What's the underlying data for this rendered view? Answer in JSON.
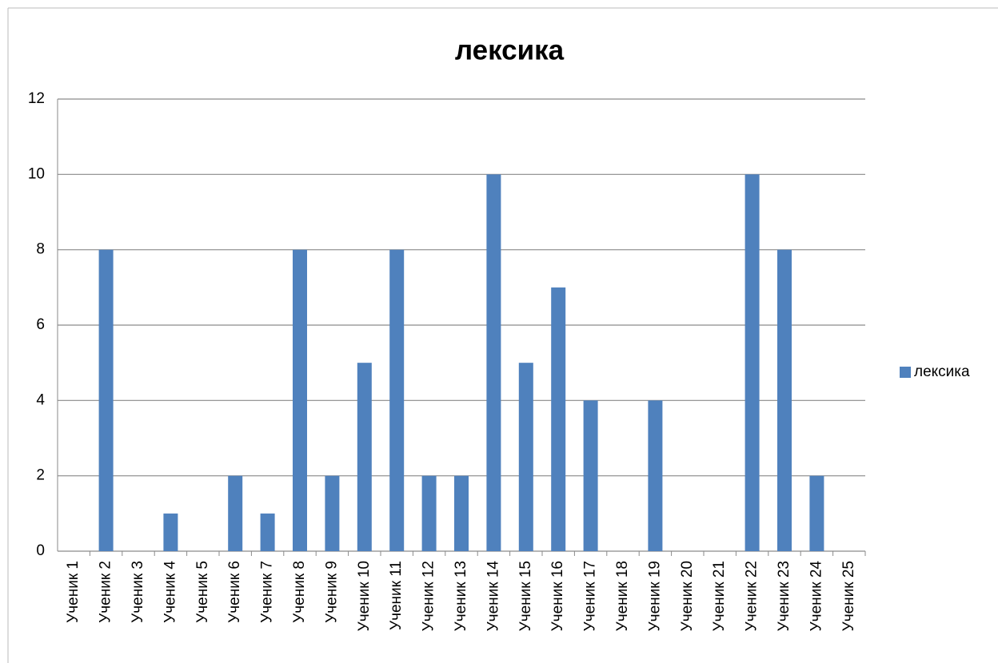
{
  "chart_data": {
    "type": "bar",
    "title": "лексика",
    "categories": [
      "Ученик 1",
      "Ученик 2",
      "Ученик 3",
      "Ученик 4",
      "Ученик 5",
      "Ученик 6",
      "Ученик 7",
      "Ученик 8",
      "Ученик 9",
      "Ученик 10",
      "Ученик 11",
      "Ученик 12",
      "Ученик 13",
      "Ученик 14",
      "Ученик 15",
      "Ученик 16",
      "Ученик 17",
      "Ученик 18",
      "Ученик 19",
      "Ученик 20",
      "Ученик 21",
      "Ученик 22",
      "Ученик 23",
      "Ученик 24",
      "Ученик 25"
    ],
    "series": [
      {
        "name": "лексика",
        "color": "#4f81bd",
        "values": [
          0,
          8,
          0,
          1,
          0,
          2,
          1,
          8,
          2,
          5,
          8,
          2,
          2,
          10,
          5,
          7,
          4,
          0,
          4,
          0,
          0,
          10,
          8,
          2,
          0
        ]
      }
    ],
    "ylim": [
      0,
      12
    ],
    "yticks": [
      0,
      2,
      4,
      6,
      8,
      10,
      12
    ],
    "grid": true,
    "legend": "right"
  }
}
